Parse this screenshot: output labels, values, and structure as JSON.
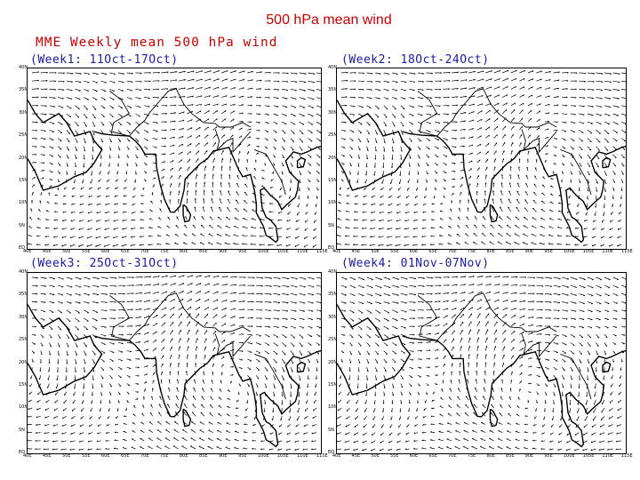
{
  "slide_title": "500  hPa  mean wind",
  "main_heading": "MME Weekly mean 500 hPa wind",
  "colors": {
    "title": "#cc0000",
    "heading": "#cc0000",
    "label": "#1a1aa6",
    "lines": "#000000"
  },
  "panels": [
    {
      "label": "(Week1: 11Oct-17Oct)"
    },
    {
      "label": "(Week2: 18Oct-24Oct)"
    },
    {
      "label": "(Week3: 25Oct-31Oct)"
    },
    {
      "label": "(Week4: 01Nov-07Nov)"
    }
  ],
  "map": {
    "lat_labels": [
      "40N",
      "35N",
      "30N",
      "25N",
      "20N",
      "15N",
      "10N",
      "5N",
      "EQ"
    ],
    "lon_labels": [
      "40E",
      "45E",
      "50E",
      "55E",
      "60E",
      "65E",
      "70E",
      "75E",
      "80E",
      "85E",
      "90E",
      "95E",
      "100E",
      "105E",
      "110E",
      "115E"
    ]
  }
}
